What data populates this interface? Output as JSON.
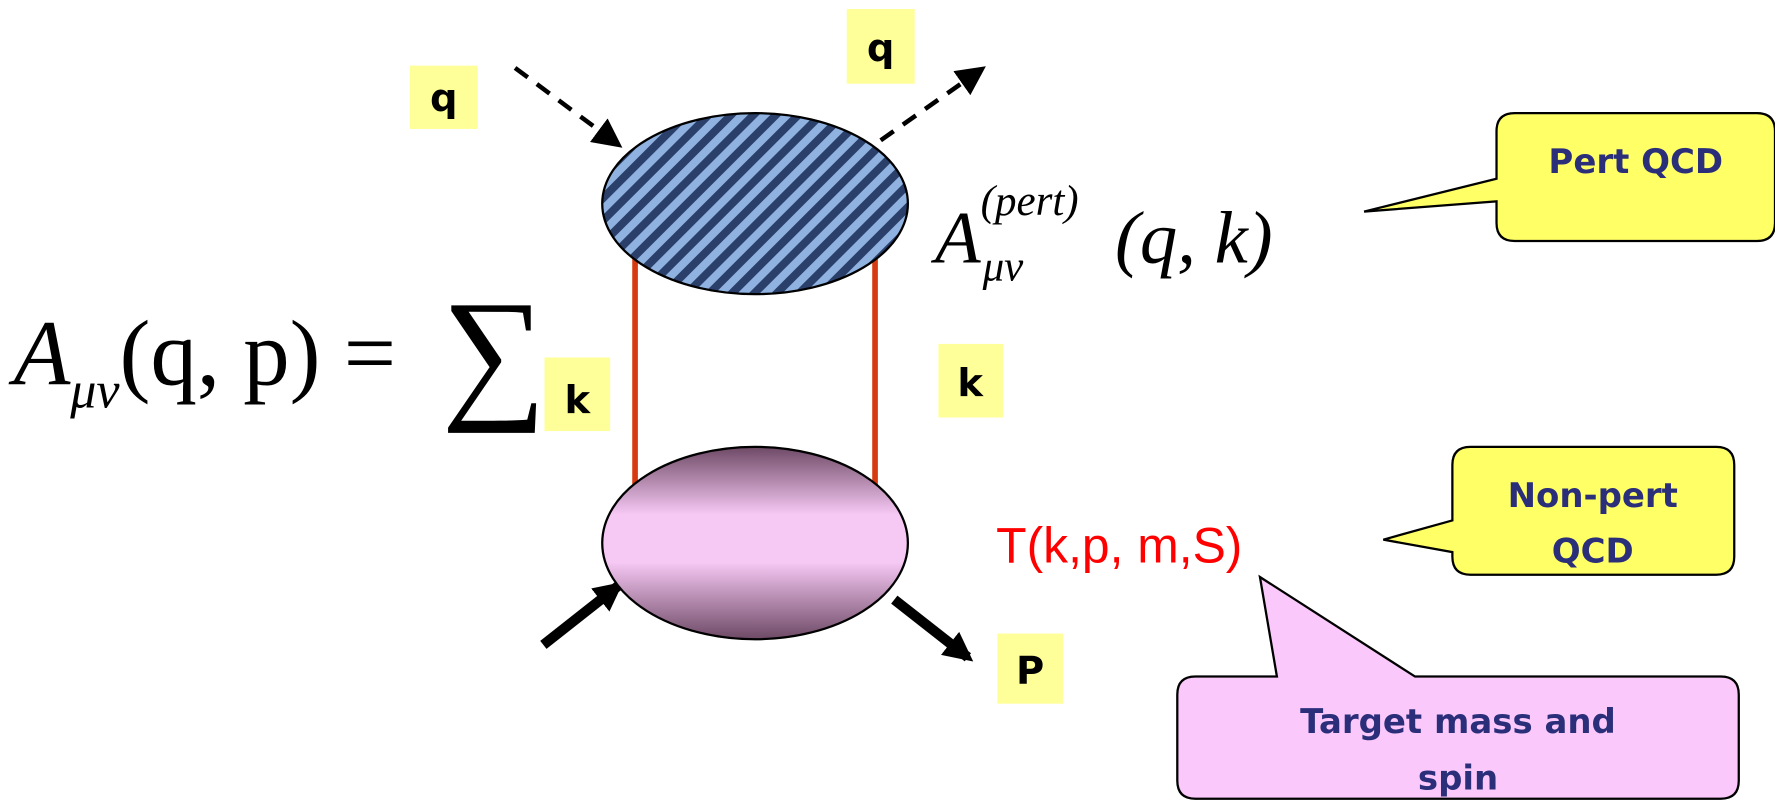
{
  "labels": {
    "q_in": "q",
    "q_out": "q",
    "k_sum": "k",
    "k_line": "k",
    "p_out": "P"
  },
  "formula": {
    "symbol": "A",
    "subscript": "μν",
    "args": "(q, p) =",
    "sum": "∑"
  },
  "upper_blob": {
    "symbol": "A",
    "subscript": "μν",
    "superscript": "(pert)",
    "args": "(q, k)"
  },
  "lower_blob": {
    "label": "T(k,p, m,S)"
  },
  "callouts": [
    {
      "lines": [
        "Pert QCD"
      ]
    },
    {
      "lines": [
        "Non-pert",
        "QCD"
      ]
    },
    {
      "lines": [
        "Target mass and",
        "spin"
      ]
    }
  ]
}
